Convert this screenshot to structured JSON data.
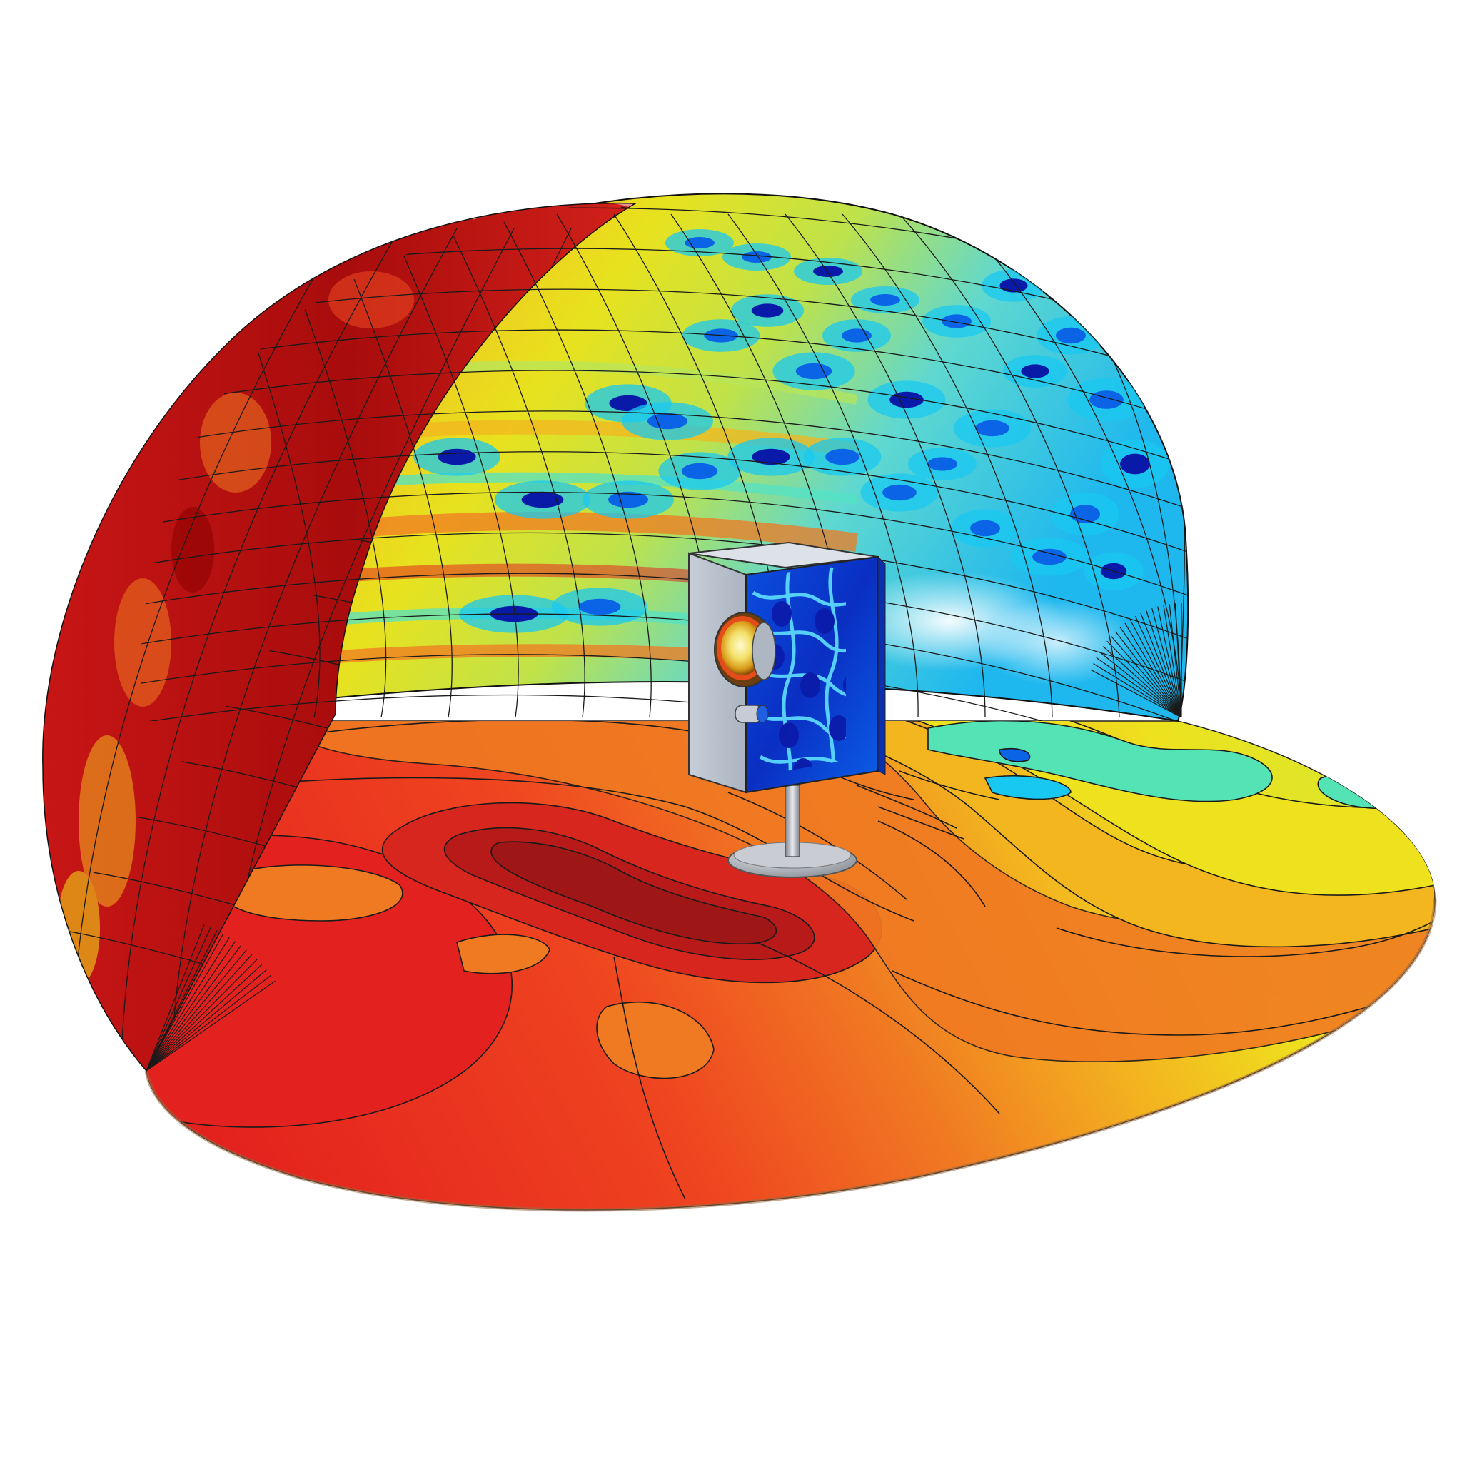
{
  "scene": {
    "background": "#ffffff",
    "colormap": [
      "#8b0000",
      "#d7261e",
      "#ef4b23",
      "#f07a22",
      "#f4b61f",
      "#f3e51b",
      "#b8e65a",
      "#54e3c5",
      "#19c8f0",
      "#0b63e6",
      "#0a1aa8"
    ],
    "objects": [
      {
        "name": "hemisphere-dome",
        "kind": "acoustic pressure level surface with mesh"
      },
      {
        "name": "floor-contour-disk",
        "kind": "filled contour plot with isolines"
      },
      {
        "name": "speaker-enclosure",
        "kind": "loudspeaker cabinet with wave pattern"
      },
      {
        "name": "speaker-stand",
        "kind": "pole and round base"
      }
    ]
  }
}
